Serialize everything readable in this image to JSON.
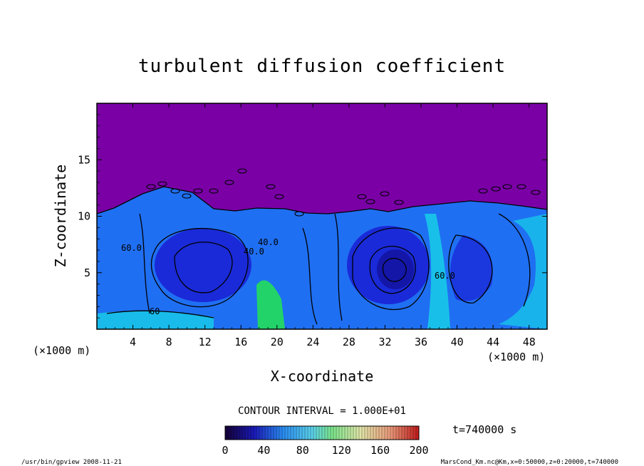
{
  "chart_data": {
    "type": "heatmap",
    "title": "turbulent diffusion coefficient",
    "xlabel": "X-coordinate",
    "ylabel": "Z-coordinate",
    "x_unit_left": "(×1000 m)",
    "x_unit_right": "(×1000 m)",
    "xlim": [
      0,
      50
    ],
    "ylim": [
      0,
      20
    ],
    "x_ticks": [
      "4",
      "8",
      "12",
      "16",
      "20",
      "24",
      "28",
      "32",
      "36",
      "40",
      "44",
      "48"
    ],
    "y_ticks": [
      "5",
      "10",
      "15"
    ],
    "contour_interval": "CONTOUR INTERVAL = 1.000E+01",
    "contour_labels": [
      "40.0",
      "40.0",
      "60",
      "60.0",
      "60.0"
    ],
    "time_label": "t=740000 s",
    "colorbar": {
      "min": 0,
      "max": 200,
      "tick_labels": [
        "0",
        "40",
        "80",
        "120",
        "160",
        "200"
      ]
    },
    "colors": {
      "background_top": "#7a00a6",
      "deep_blue": "#1a2ad8",
      "mid_blue": "#1f6ff2",
      "cyan": "#17c9e8",
      "green": "#22d36a"
    }
  },
  "footer": {
    "left": "/usr/bin/gpview  2008-11-21",
    "right": "MarsCond_Km.nc@Km,x=0:50000,z=0:20000,t=740000"
  }
}
